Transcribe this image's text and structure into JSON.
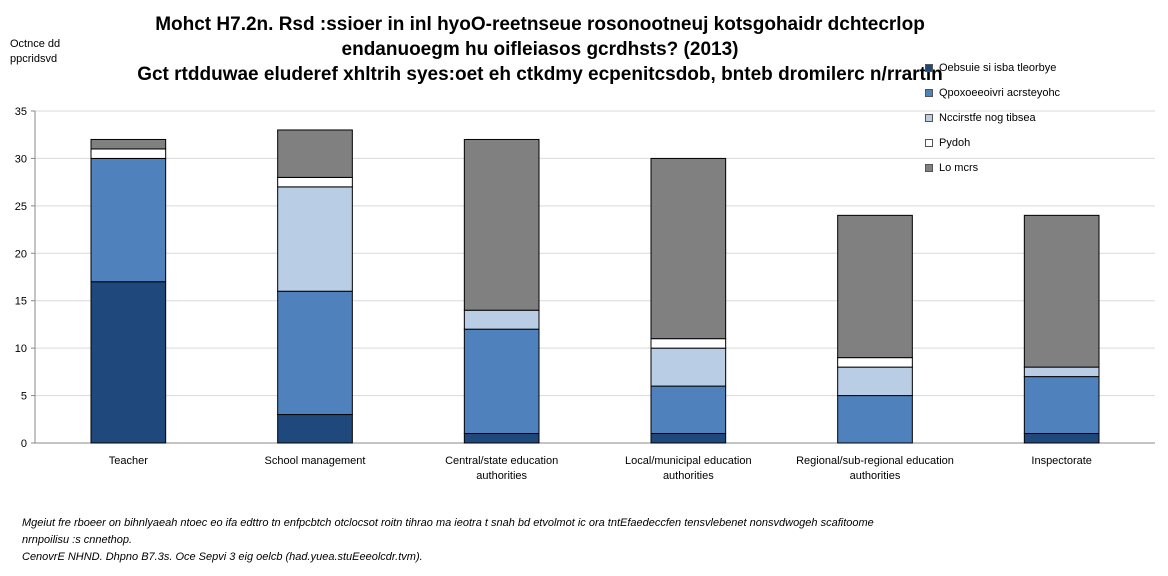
{
  "chart_data": {
    "type": "bar",
    "stacked": true,
    "title": [
      "Mohct H7.2n. Rsd :ssioer in inl hyoO-reetnseue rosonootneuj kotsgohaidr dchtecrlop",
      "endanuoegm hu oifleiasos gcrdhsts? (2013)",
      "Gct rtdduwae eluderef xhltrih syes:oet eh ctkdmy ecpenitcsdob, bnteb dromilerc n/rrartin"
    ],
    "ylabel": [
      "Octnce dd",
      "ppcridsvd"
    ],
    "ylim": [
      0,
      35
    ],
    "yticks": [
      0,
      5,
      10,
      15,
      20,
      25,
      30,
      35
    ],
    "grid": true,
    "legend_position": "right",
    "categories": [
      [
        "Teacher"
      ],
      [
        "School management"
      ],
      [
        "Central/state education",
        "authorities"
      ],
      [
        "Local/municipal education",
        "authorities"
      ],
      [
        "Regional/sub-regional education",
        "authorities"
      ],
      [
        "Inspectorate"
      ]
    ],
    "series": [
      {
        "name": "Oebsuie si isba tleorbye",
        "color": "#1f497d",
        "values": [
          17,
          3,
          1,
          1,
          0,
          1
        ]
      },
      {
        "name": "Qpoxoeeoivri acrsteyohc",
        "color": "#4f81bd",
        "values": [
          13,
          13,
          11,
          5,
          5,
          6
        ]
      },
      {
        "name": "Nccirstfe nog tibsea",
        "color": "#b9cde5",
        "values": [
          0,
          11,
          2,
          4,
          3,
          1
        ]
      },
      {
        "name": "Pydoh",
        "color": "#ffffff",
        "values": [
          1,
          1,
          0,
          1,
          1,
          0
        ]
      },
      {
        "name": "Lo mcrs",
        "color": "#808080",
        "values": [
          1,
          5,
          18,
          19,
          15,
          16
        ]
      }
    ]
  },
  "notes": [
    "Mgeiut fre rboeer on bihnlyaeah ntoec eo ifa edttro tn enfpcbtch otclocsot roitn tihrao ma ieotra t snah bd etvolmot ic ora tntEfaedeccfen tensvlebenet nonsvdwogeh scafitoome",
    "nrnpoilisu :s cnnethop.",
    "CenovrE NHND. Dhpno B7.3s. Oce Sepvi 3 eig oelcb (had.yuea.stuEeeolcdr.tvm)."
  ]
}
